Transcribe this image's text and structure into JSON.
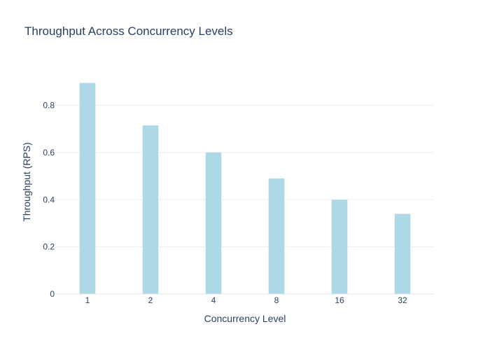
{
  "chart_data": {
    "type": "bar",
    "title": "Throughput Across Concurrency Levels",
    "xlabel": "Concurrency Level",
    "ylabel": "Throughput (RPS)",
    "categories": [
      "1",
      "2",
      "4",
      "8",
      "16",
      "32"
    ],
    "values": [
      0.895,
      0.715,
      0.6,
      0.49,
      0.4,
      0.34
    ],
    "ylim": [
      0,
      0.95
    ],
    "yticks": [
      "0",
      "0.2",
      "0.4",
      "0.6",
      "0.8"
    ],
    "ytick_values": [
      0,
      0.2,
      0.4,
      0.6,
      0.8
    ],
    "grid": true,
    "bar_color": "#add8e6",
    "grid_color": "#eeeeee",
    "text_color": "#2a3f5f"
  }
}
